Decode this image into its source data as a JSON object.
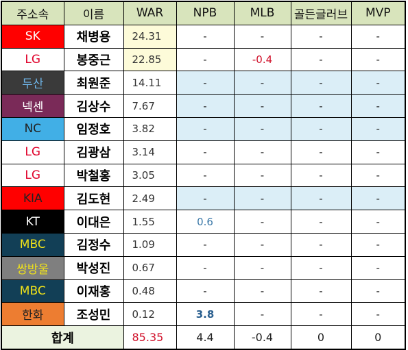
{
  "headers": [
    "주소속",
    "이름",
    "WAR",
    "NPB",
    "MLB",
    "골든글러브",
    "MVP"
  ],
  "colors": {
    "header_bg": "#d8e4bc",
    "highlight_war": "#fdfbd9",
    "light_blue_row": "#dbeef7",
    "red_text": "#d0102a",
    "blue_text": "#3a78a8"
  },
  "rows": [
    {
      "team": "SK",
      "team_bg": "#ff0000",
      "team_color": "#ffffff",
      "name": "채병용",
      "war": "24.31",
      "npb": "-",
      "mlb": "-",
      "gg": "-",
      "mvp": "-",
      "war_hl": true,
      "row_blue": false
    },
    {
      "team": "LG",
      "team_bg": "#ffffff",
      "team_color": "#e0002a",
      "name": "봉중근",
      "war": "22.85",
      "npb": "-",
      "mlb": "-0.4",
      "gg": "-",
      "mvp": "-",
      "war_hl": true,
      "row_blue": false,
      "mlb_red": true
    },
    {
      "team": "두산",
      "team_bg": "#3a3a3a",
      "team_color": "#6fb6ea",
      "name": "최원준",
      "war": "14.11",
      "npb": "-",
      "mlb": "-",
      "gg": "-",
      "mvp": "-",
      "war_hl": false,
      "row_blue": true
    },
    {
      "team": "넥센",
      "team_bg": "#7a2a58",
      "team_color": "#ffffff",
      "name": "김상수",
      "war": "7.67",
      "npb": "-",
      "mlb": "-",
      "gg": "-",
      "mvp": "-",
      "war_hl": false,
      "row_blue": true
    },
    {
      "team": "NC",
      "team_bg": "#41afe6",
      "team_color": "#222222",
      "name": "임정호",
      "war": "3.82",
      "npb": "-",
      "mlb": "-",
      "gg": "-",
      "mvp": "-",
      "war_hl": false,
      "row_blue": true
    },
    {
      "team": "LG",
      "team_bg": "#ffffff",
      "team_color": "#e0002a",
      "name": "김광삼",
      "war": "3.14",
      "npb": "-",
      "mlb": "-",
      "gg": "-",
      "mvp": "-",
      "war_hl": false,
      "row_blue": false
    },
    {
      "team": "LG",
      "team_bg": "#ffffff",
      "team_color": "#e0002a",
      "name": "박철홍",
      "war": "3.05",
      "npb": "-",
      "mlb": "-",
      "gg": "-",
      "mvp": "-",
      "war_hl": false,
      "row_blue": false
    },
    {
      "team": "KIA",
      "team_bg": "#ff0000",
      "team_color": "#222222",
      "name": "김도현",
      "war": "2.49",
      "npb": "-",
      "mlb": "-",
      "gg": "-",
      "mvp": "-",
      "war_hl": false,
      "row_blue": true
    },
    {
      "team": "KT",
      "team_bg": "#000000",
      "team_color": "#ffffff",
      "name": "이대은",
      "war": "1.55",
      "npb": "0.6",
      "mlb": "-",
      "gg": "-",
      "mvp": "-",
      "war_hl": false,
      "row_blue": false,
      "npb_style": "blue"
    },
    {
      "team": "MBC",
      "team_bg": "#123f56",
      "team_color": "#f0e21a",
      "name": "김정수",
      "war": "1.09",
      "npb": "-",
      "mlb": "-",
      "gg": "-",
      "mvp": "-",
      "war_hl": false,
      "row_blue": false
    },
    {
      "team": "쌍방울",
      "team_bg": "#7f7f7f",
      "team_color": "#f0e21a",
      "name": "박성진",
      "war": "0.67",
      "npb": "-",
      "mlb": "-",
      "gg": "-",
      "mvp": "-",
      "war_hl": false,
      "row_blue": false
    },
    {
      "team": "MBC",
      "team_bg": "#123f56",
      "team_color": "#f0e21a",
      "name": "이재홍",
      "war": "0.48",
      "npb": "-",
      "mlb": "-",
      "gg": "-",
      "mvp": "-",
      "war_hl": false,
      "row_blue": false
    },
    {
      "team": "한화",
      "team_bg": "#ed7d31",
      "team_color": "#222222",
      "name": "조성민",
      "war": "0.12",
      "npb": "3.8",
      "mlb": "-",
      "gg": "-",
      "mvp": "-",
      "war_hl": false,
      "row_blue": false,
      "npb_style": "blue-bold"
    }
  ],
  "total": {
    "label": "합계",
    "war": "85.35",
    "npb": "4.4",
    "mlb": "-0.4",
    "gg": "0",
    "mvp": "0"
  }
}
